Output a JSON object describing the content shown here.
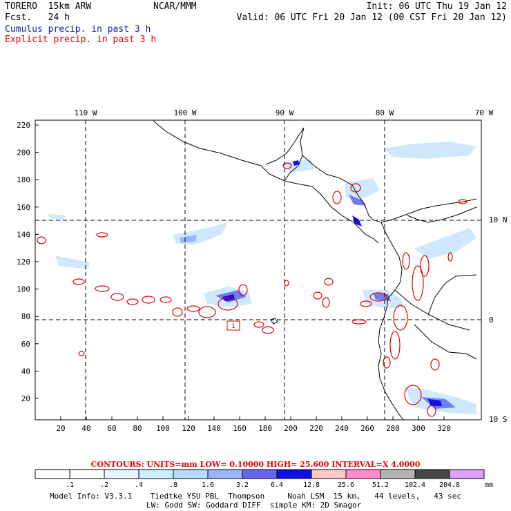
{
  "header": {
    "left_line1": "TORERO  15km ARW",
    "left_line2": "Fcst.   24 h",
    "center": "NCAR/MMM",
    "init": "Init: 06 UTC Thu 19 Jan 12",
    "valid": "Valid: 06 UTC Fri 20 Jan 12 (00 CST Fri 20 Jan 12)",
    "legend_cumulus": "Cumulus precip. in past 3 h",
    "legend_explicit": "Explicit precip. in past 3 h"
  },
  "map": {
    "top_lon_labels": [
      "110 W",
      "100 W",
      "90 W",
      "80 W",
      "70 W"
    ],
    "right_lat_labels": [
      "10 N",
      "0",
      "10 S"
    ],
    "left_grid_labels": [
      "220",
      "200",
      "180",
      "160",
      "140",
      "120",
      "100",
      "80",
      "60",
      "40",
      "20"
    ],
    "bottom_grid_labels": [
      "20",
      "40",
      "60",
      "80",
      "100",
      "120",
      "140",
      "160",
      "180",
      "200",
      "220",
      "240",
      "260",
      "280",
      "300",
      "320"
    ],
    "box_label": "1"
  },
  "colorbar": {
    "contours_text": "CONTOURS:  UNITS=mm  LOW= 0.10000     HIGH=  25.600     INTERVAL=X  4.0000",
    "labels": [
      ".1",
      ".2",
      ".4",
      ".8",
      "1.6",
      "3.2",
      "6.4",
      "12.8",
      "25.6",
      "51.2",
      "102.4",
      "204.8"
    ],
    "unit": "mm",
    "colors": [
      "#ffffff",
      "#ffffff",
      "#e6f5ff",
      "#ccf0ff",
      "#b4dcff",
      "#9ab4ff",
      "#6464f0",
      "#1010e6",
      "#ffc8c8",
      "#ff8cc8",
      "#b4b4b4",
      "#464646",
      "#dca0ff"
    ]
  },
  "footer": {
    "line1": "Model Info: V3.3.1    Tiedtke YSU PBL  Thompson     Noah LSM  15 km,   44 levels,   43 sec",
    "line2": "LW: Godd SW: Goddard DIFF  simple KM: 2D Smagor"
  }
}
